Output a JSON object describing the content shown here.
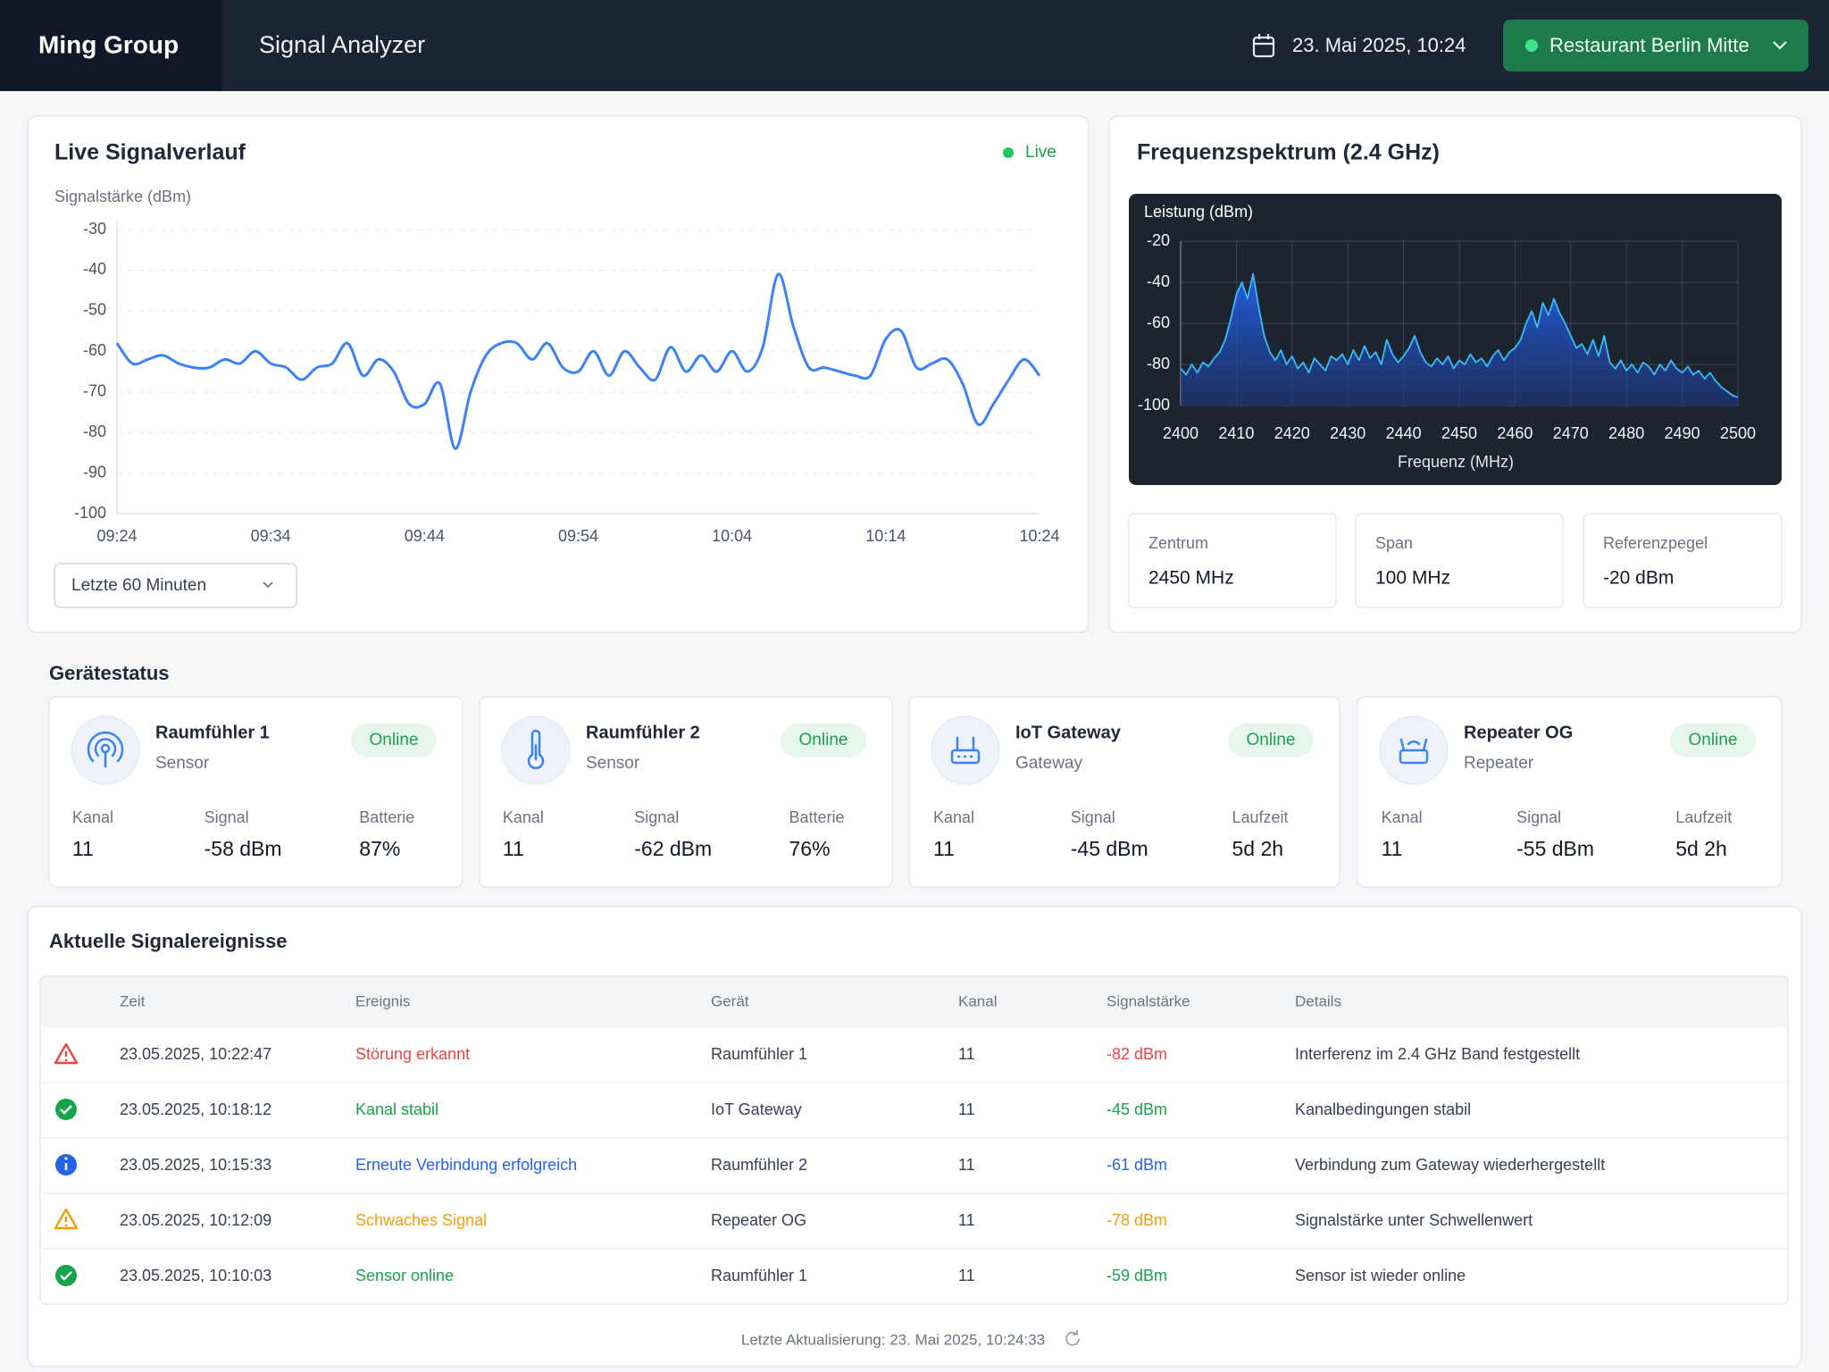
{
  "header": {
    "brand": "Ming Group",
    "app": "Signal Analyzer",
    "datetime": "23. Mai 2025, 10:24",
    "location": "Restaurant Berlin Mitte"
  },
  "chart_data": [
    {
      "type": "line",
      "title": "Live Signalverlauf",
      "status": "Live",
      "y_label": "Signalstärke (dBm)",
      "categories": [
        "09:24",
        null,
        null,
        null,
        null,
        null,
        null,
        null,
        null,
        null,
        "09:34",
        null,
        null,
        null,
        null,
        null,
        null,
        null,
        null,
        null,
        "09:44",
        null,
        null,
        null,
        null,
        null,
        null,
        null,
        null,
        null,
        "09:54",
        null,
        null,
        null,
        null,
        null,
        null,
        null,
        null,
        null,
        "10:04",
        null,
        null,
        null,
        null,
        null,
        null,
        null,
        null,
        null,
        "10:14",
        null,
        null,
        null,
        null,
        null,
        null,
        null,
        null,
        null,
        "10:24"
      ],
      "values": [
        -58,
        -63,
        -62,
        -61,
        -63,
        -64,
        -64,
        -62,
        -63,
        -60,
        -63,
        -64,
        -67,
        -64,
        -63,
        -58,
        -66,
        -62,
        -65,
        -73,
        -73,
        -68,
        -84,
        -70,
        -61,
        -58,
        -58,
        -62,
        -58,
        -64,
        -65,
        -60,
        -66,
        -60,
        -64,
        -67,
        -59,
        -65,
        -61,
        -65,
        -60,
        -65,
        -59,
        -41,
        -54,
        -64,
        -64,
        -65,
        -66,
        -66,
        -57,
        -55,
        -64,
        -63,
        -62,
        -68,
        -78,
        -73,
        -67,
        -62,
        -66
      ],
      "color": "#3b82f6",
      "ylim": [
        -100,
        -30
      ],
      "yticks": [
        -30,
        -40,
        -50,
        -60,
        -70,
        -80,
        -90,
        -100
      ],
      "grid": true,
      "range_select": "Letzte 60 Minuten"
    },
    {
      "type": "area",
      "title": "Frequenzspektrum (2.4 GHz)",
      "y_label": "Leistung (dBm)",
      "x_label": "Frequenz (MHz)",
      "x": [
        2400,
        2401,
        2402,
        2403,
        2404,
        2405,
        2406,
        2407,
        2408,
        2409,
        2410,
        2411,
        2412,
        2413,
        2414,
        2415,
        2416,
        2417,
        2418,
        2419,
        2420,
        2421,
        2422,
        2423,
        2424,
        2425,
        2426,
        2427,
        2428,
        2429,
        2430,
        2431,
        2432,
        2433,
        2434,
        2435,
        2436,
        2437,
        2438,
        2439,
        2440,
        2441,
        2442,
        2443,
        2444,
        2445,
        2446,
        2447,
        2448,
        2449,
        2450,
        2451,
        2452,
        2453,
        2454,
        2455,
        2456,
        2457,
        2458,
        2459,
        2460,
        2461,
        2462,
        2463,
        2464,
        2465,
        2466,
        2467,
        2468,
        2469,
        2470,
        2471,
        2472,
        2473,
        2474,
        2475,
        2476,
        2477,
        2478,
        2479,
        2480,
        2481,
        2482,
        2483,
        2484,
        2485,
        2486,
        2487,
        2488,
        2489,
        2490,
        2491,
        2492,
        2493,
        2494,
        2495,
        2496,
        2497,
        2498,
        2499,
        2500
      ],
      "values": [
        -82,
        -85,
        -80,
        -84,
        -79,
        -81,
        -77,
        -74,
        -68,
        -58,
        -46,
        -40,
        -48,
        -36,
        -52,
        -66,
        -74,
        -78,
        -73,
        -80,
        -76,
        -82,
        -79,
        -84,
        -77,
        -80,
        -83,
        -76,
        -78,
        -75,
        -80,
        -73,
        -78,
        -71,
        -77,
        -74,
        -80,
        -68,
        -75,
        -79,
        -76,
        -72,
        -66,
        -74,
        -79,
        -81,
        -77,
        -80,
        -76,
        -82,
        -78,
        -80,
        -75,
        -79,
        -77,
        -81,
        -76,
        -73,
        -78,
        -74,
        -72,
        -68,
        -60,
        -54,
        -62,
        -50,
        -56,
        -48,
        -55,
        -60,
        -66,
        -72,
        -70,
        -75,
        -68,
        -76,
        -66,
        -79,
        -82,
        -78,
        -83,
        -80,
        -84,
        -79,
        -81,
        -85,
        -80,
        -83,
        -78,
        -82,
        -84,
        -81,
        -85,
        -83,
        -87,
        -84,
        -88,
        -91,
        -93,
        -95,
        -96
      ],
      "color": "#38bdf8",
      "xlim": [
        2400,
        2500
      ],
      "xticks": [
        2400,
        2410,
        2420,
        2430,
        2440,
        2450,
        2460,
        2470,
        2480,
        2490,
        2500
      ],
      "ylim": [
        -100,
        -20
      ],
      "yticks": [
        -20,
        -40,
        -60,
        -80,
        -100
      ],
      "grid": true,
      "stats": [
        {
          "label": "Zentrum",
          "value": "2450 MHz"
        },
        {
          "label": "Span",
          "value": "100 MHz"
        },
        {
          "label": "Referenzpegel",
          "value": "-20 dBm"
        }
      ]
    }
  ],
  "devices": {
    "title": "Gerätestatus",
    "items": [
      {
        "name": "Raumfühler 1",
        "type": "Sensor",
        "status": "Online",
        "metrics": [
          {
            "label": "Kanal",
            "value": "11"
          },
          {
            "label": "Signal",
            "value": "-58 dBm"
          },
          {
            "label": "Batterie",
            "value": "87%"
          }
        ]
      },
      {
        "name": "Raumfühler 2",
        "type": "Sensor",
        "status": "Online",
        "metrics": [
          {
            "label": "Kanal",
            "value": "11"
          },
          {
            "label": "Signal",
            "value": "-62 dBm"
          },
          {
            "label": "Batterie",
            "value": "76%"
          }
        ]
      },
      {
        "name": "IoT Gateway",
        "type": "Gateway",
        "status": "Online",
        "metrics": [
          {
            "label": "Kanal",
            "value": "11"
          },
          {
            "label": "Signal",
            "value": "-45 dBm"
          },
          {
            "label": "Laufzeit",
            "value": "5d 2h"
          }
        ]
      },
      {
        "name": "Repeater OG",
        "type": "Repeater",
        "status": "Online",
        "metrics": [
          {
            "label": "Kanal",
            "value": "11"
          },
          {
            "label": "Signal",
            "value": "-55 dBm"
          },
          {
            "label": "Laufzeit",
            "value": "5d 2h"
          }
        ]
      }
    ]
  },
  "events": {
    "title": "Aktuelle Signalereignisse",
    "columns": [
      "Zeit",
      "Ereignis",
      "Gerät",
      "Kanal",
      "Signalstärke",
      "Details"
    ],
    "rows": [
      {
        "time": "23.05.2025, 10:22:47",
        "event": "Störung erkannt",
        "device": "Raumfühler 1",
        "channel": "11",
        "signal": "-82 dBm",
        "details": "Interferenz im 2.4 GHz Band festgestellt",
        "color": "#ef4444"
      },
      {
        "time": "23.05.2025, 10:18:12",
        "event": "Kanal stabil",
        "device": "IoT Gateway",
        "channel": "11",
        "signal": "-45 dBm",
        "details": "Kanalbedingungen stabil",
        "color": "#16a34a"
      },
      {
        "time": "23.05.2025, 10:15:33",
        "event": "Erneute Verbindung erfolgreich",
        "device": "Raumfühler 2",
        "channel": "11",
        "signal": "-61 dBm",
        "details": "Verbindung zum Gateway wiederhergestellt",
        "color": "#2563eb"
      },
      {
        "time": "23.05.2025, 10:12:09",
        "event": "Schwaches Signal",
        "device": "Repeater OG",
        "channel": "11",
        "signal": "-78 dBm",
        "details": "Signalstärke unter Schwellenwert",
        "color": "#f59e0b"
      },
      {
        "time": "23.05.2025, 10:10:03",
        "event": "Sensor online",
        "device": "Raumfühler 1",
        "channel": "11",
        "signal": "-59 dBm",
        "details": "Sensor ist wieder online",
        "color": "#16a34a"
      }
    ]
  },
  "footer": {
    "updated": "Letzte Aktualisierung: 23. Mai 2025, 10:24:33"
  }
}
